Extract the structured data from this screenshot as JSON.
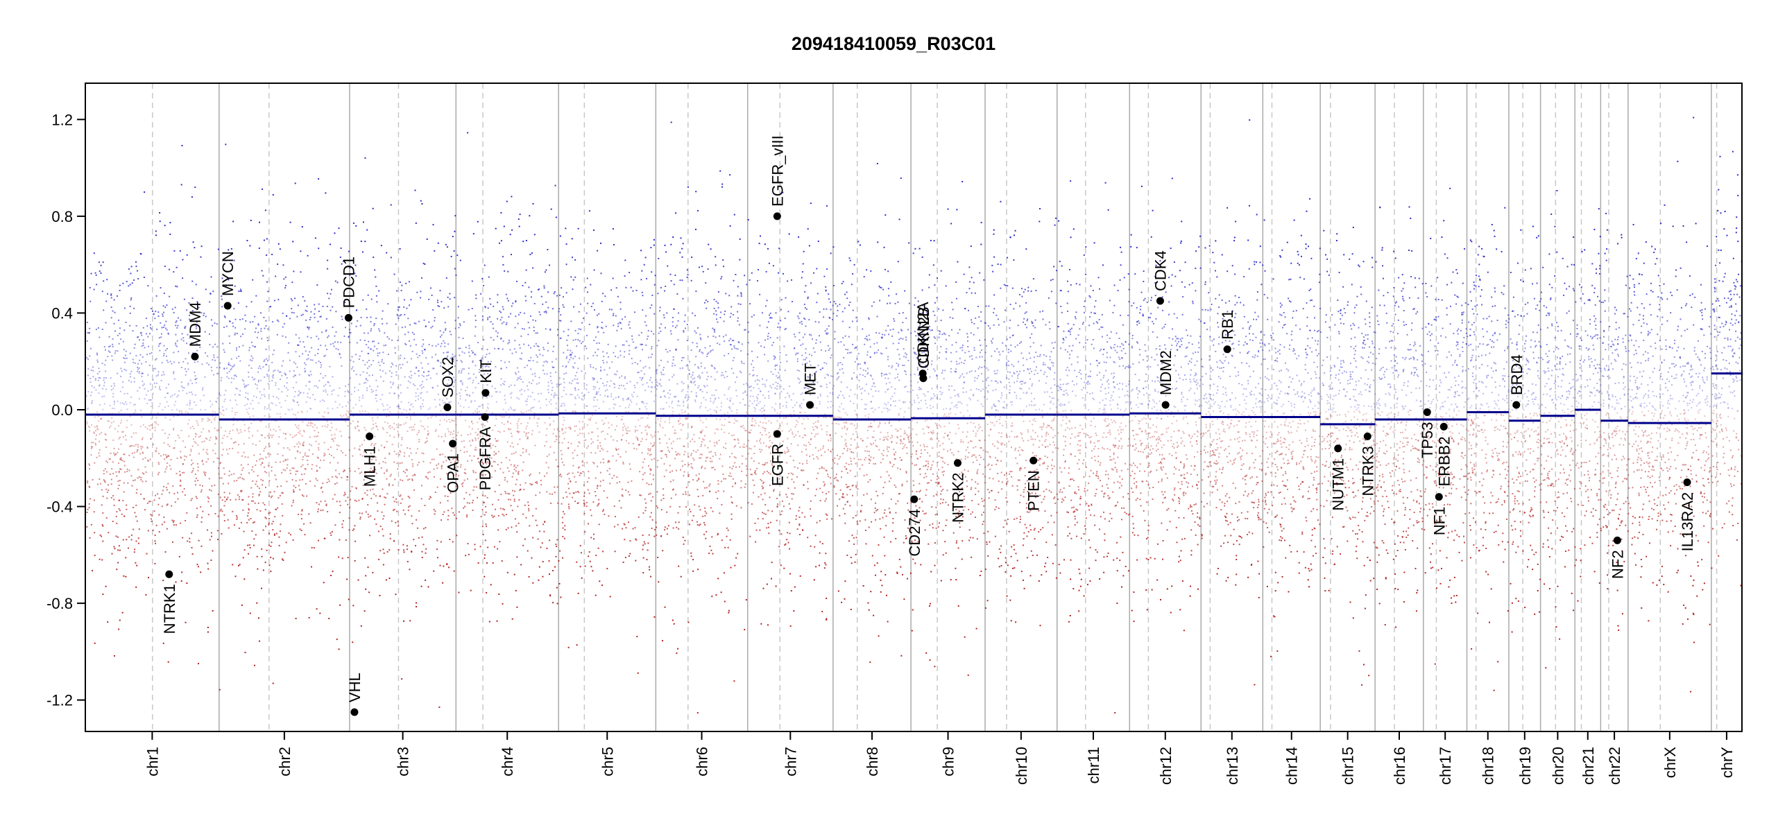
{
  "chart_data": {
    "type": "scatter",
    "title": "209418410059_R03C01",
    "xlabel": "",
    "ylabel": "",
    "ylim": [
      -1.33,
      1.35
    ],
    "y_ticks": [
      -1.2,
      -0.8,
      -0.4,
      0.0,
      0.4,
      0.8,
      1.2
    ],
    "y_tick_labels": [
      "-1.2",
      "-0.8",
      "-0.4",
      "0.0",
      "0.4",
      "0.8",
      "1.2"
    ],
    "grid": false,
    "colors": {
      "gain": "#2c2cc8",
      "loss": "#b22222",
      "segment": "#00008b",
      "boundary": "#aaaaaa",
      "centromere": "#c8c8c8",
      "gene": "#000000"
    },
    "chromosomes": [
      {
        "label": "chr1",
        "start": 0,
        "end": 249,
        "centromere": 125,
        "segment": -0.02
      },
      {
        "label": "chr2",
        "start": 249,
        "end": 492,
        "centromere": 93,
        "segment": -0.04
      },
      {
        "label": "chr3",
        "start": 492,
        "end": 690,
        "centromere": 91,
        "segment": -0.02
      },
      {
        "label": "chr4",
        "start": 690,
        "end": 881,
        "centromere": 50,
        "segment": -0.02
      },
      {
        "label": "chr5",
        "start": 881,
        "end": 1062,
        "centromere": 48,
        "segment": -0.015
      },
      {
        "label": "chr6",
        "start": 1062,
        "end": 1233,
        "centromere": 60,
        "segment": -0.025
      },
      {
        "label": "chr7",
        "start": 1233,
        "end": 1392,
        "centromere": 60,
        "segment": -0.025
      },
      {
        "label": "chr8",
        "start": 1392,
        "end": 1537,
        "centromere": 45,
        "segment": -0.04
      },
      {
        "label": "chr9",
        "start": 1537,
        "end": 1675,
        "centromere": 49,
        "segment": -0.035
      },
      {
        "label": "chr10",
        "start": 1675,
        "end": 1809,
        "centromere": 40,
        "segment": -0.02
      },
      {
        "label": "chr11",
        "start": 1809,
        "end": 1944,
        "centromere": 53,
        "segment": -0.02
      },
      {
        "label": "chr12",
        "start": 1944,
        "end": 2077,
        "centromere": 35,
        "segment": -0.015
      },
      {
        "label": "chr13",
        "start": 2077,
        "end": 2192,
        "centromere": 17,
        "segment": -0.03
      },
      {
        "label": "chr14",
        "start": 2192,
        "end": 2299,
        "centromere": 17,
        "segment": -0.03
      },
      {
        "label": "chr15",
        "start": 2299,
        "end": 2401,
        "centromere": 19,
        "segment": -0.06
      },
      {
        "label": "chr16",
        "start": 2401,
        "end": 2491,
        "centromere": 36,
        "segment": -0.04
      },
      {
        "label": "chr17",
        "start": 2491,
        "end": 2572,
        "centromere": 24,
        "segment": -0.04
      },
      {
        "label": "chr18",
        "start": 2572,
        "end": 2650,
        "centromere": 17,
        "segment": -0.01
      },
      {
        "label": "chr19",
        "start": 2650,
        "end": 2709,
        "centromere": 26,
        "segment": -0.045
      },
      {
        "label": "chr20",
        "start": 2709,
        "end": 2773,
        "centromere": 28,
        "segment": -0.025
      },
      {
        "label": "chr21",
        "start": 2773,
        "end": 2821,
        "centromere": 12,
        "segment": 0.0
      },
      {
        "label": "chr22",
        "start": 2821,
        "end": 2872,
        "centromere": 15,
        "segment": -0.045
      },
      {
        "label": "chrX",
        "start": 2872,
        "end": 3027,
        "centromere": 60,
        "segment": -0.055
      },
      {
        "label": "chrY",
        "start": 3027,
        "end": 3084,
        "centromere": 10,
        "segment": 0.15
      }
    ],
    "genes": [
      {
        "name": "NTRK1",
        "x": 156,
        "y": -0.68,
        "side": "below"
      },
      {
        "name": "MDM4",
        "x": 204,
        "y": 0.22,
        "side": "above"
      },
      {
        "name": "MYCN",
        "x": 265,
        "y": 0.43,
        "side": "above"
      },
      {
        "name": "PDCD1",
        "x": 490,
        "y": 0.38,
        "side": "above"
      },
      {
        "name": "VHL",
        "x": 501,
        "y": -1.25,
        "side": "above"
      },
      {
        "name": "MLH1",
        "x": 529,
        "y": -0.11,
        "side": "below"
      },
      {
        "name": "SOX2",
        "x": 674,
        "y": 0.01,
        "side": "above"
      },
      {
        "name": "OPA1",
        "x": 684,
        "y": -0.14,
        "side": "below"
      },
      {
        "name": "KIT",
        "x": 745,
        "y": 0.07,
        "side": "above"
      },
      {
        "name": "PDGFRA",
        "x": 744,
        "y": -0.03,
        "side": "below"
      },
      {
        "name": "EGFR_vIII",
        "x": 1288,
        "y": 0.8,
        "side": "above"
      },
      {
        "name": "EGFR",
        "x": 1288,
        "y": -0.1,
        "side": "below"
      },
      {
        "name": "MET",
        "x": 1349,
        "y": 0.02,
        "side": "above"
      },
      {
        "name": "CD274",
        "x": 1543,
        "y": -0.37,
        "side": "below"
      },
      {
        "name": "CDKN2A",
        "x": 1559,
        "y": 0.15,
        "side": "above"
      },
      {
        "name": "CDKN2B",
        "x": 1560,
        "y": 0.13,
        "side": "above"
      },
      {
        "name": "NTRK2",
        "x": 1624,
        "y": -0.22,
        "side": "below"
      },
      {
        "name": "PTEN",
        "x": 1765,
        "y": -0.21,
        "side": "below"
      },
      {
        "name": "CDK4",
        "x": 2001,
        "y": 0.45,
        "side": "above"
      },
      {
        "name": "MDM2",
        "x": 2011,
        "y": 0.02,
        "side": "above"
      },
      {
        "name": "RB1",
        "x": 2126,
        "y": 0.25,
        "side": "above"
      },
      {
        "name": "NUTM1",
        "x": 2332,
        "y": -0.16,
        "side": "below"
      },
      {
        "name": "NTRK3",
        "x": 2387,
        "y": -0.11,
        "side": "below"
      },
      {
        "name": "TP53",
        "x": 2498,
        "y": -0.01,
        "side": "below"
      },
      {
        "name": "NF1",
        "x": 2520,
        "y": -0.36,
        "side": "below"
      },
      {
        "name": "ERBB2",
        "x": 2529,
        "y": -0.07,
        "side": "below"
      },
      {
        "name": "BRD4",
        "x": 2664,
        "y": 0.02,
        "side": "above"
      },
      {
        "name": "NF2",
        "x": 2852,
        "y": -0.54,
        "side": "below"
      },
      {
        "name": "IL13RA2",
        "x": 2982,
        "y": -0.3,
        "side": "below"
      }
    ]
  }
}
